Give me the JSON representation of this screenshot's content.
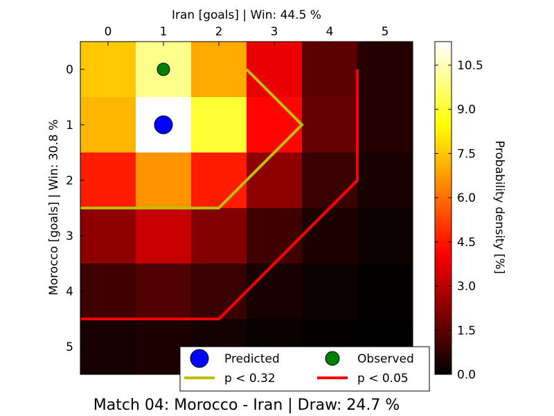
{
  "chart_data": {
    "type": "heatmap",
    "title": "Match 04: Morocco - Iran | Draw: 24.7 %",
    "xlabel": "Iran [goals] | Win: 44.5 %",
    "ylabel": "Morocco [goals] | Win: 30.8 %",
    "x_ticks": [
      "0",
      "1",
      "2",
      "3",
      "4",
      "5"
    ],
    "y_ticks": [
      "0",
      "1",
      "2",
      "3",
      "4",
      "5"
    ],
    "colorbar": {
      "label": "Probability density [%]",
      "ticks": [
        "0.0",
        "1.5",
        "3.0",
        "4.5",
        "6.0",
        "7.5",
        "9.0",
        "10.5"
      ],
      "range": [
        0,
        11.3
      ],
      "colormap": "hot"
    },
    "matrix": [
      [
        7.5,
        10.0,
        7.0,
        3.8,
        1.5,
        0.6
      ],
      [
        7.2,
        11.3,
        9.0,
        4.2,
        1.6,
        0.6
      ],
      [
        4.6,
        6.6,
        4.6,
        2.3,
        0.9,
        0.4
      ],
      [
        2.3,
        3.2,
        2.1,
        1.0,
        0.45,
        0.2
      ],
      [
        1.0,
        1.3,
        0.9,
        0.4,
        0.2,
        0.08
      ],
      [
        0.35,
        0.45,
        0.3,
        0.14,
        0.06,
        0.02
      ]
    ],
    "predicted": {
      "iran": 1,
      "morocco": 1,
      "color": "#0000ff"
    },
    "observed": {
      "iran": 1,
      "morocco": 0,
      "color": "#008000"
    },
    "contours": [
      {
        "name": "p < 0.32",
        "color": "#bfbf00",
        "points": [
          [
            2.5,
            0
          ],
          [
            3.5,
            1
          ],
          [
            2.5,
            2
          ],
          [
            2,
            2.5
          ],
          [
            -0.5,
            2.5
          ]
        ]
      },
      {
        "name": "p < 0.05",
        "color": "#ff0000",
        "points": [
          [
            4.5,
            0
          ],
          [
            4.5,
            2
          ],
          [
            2,
            4.5
          ],
          [
            -0.5,
            4.5
          ]
        ]
      }
    ],
    "legend": {
      "placement": "bottom-right",
      "entries": [
        {
          "label": "Predicted",
          "kind": "marker",
          "color": "#0000ff"
        },
        {
          "label": "Observed",
          "kind": "marker",
          "color": "#008000"
        },
        {
          "label": "p < 0.32",
          "kind": "line",
          "color": "#bfbf00"
        },
        {
          "label": "p < 0.05",
          "kind": "line",
          "color": "#ff0000"
        }
      ]
    }
  }
}
